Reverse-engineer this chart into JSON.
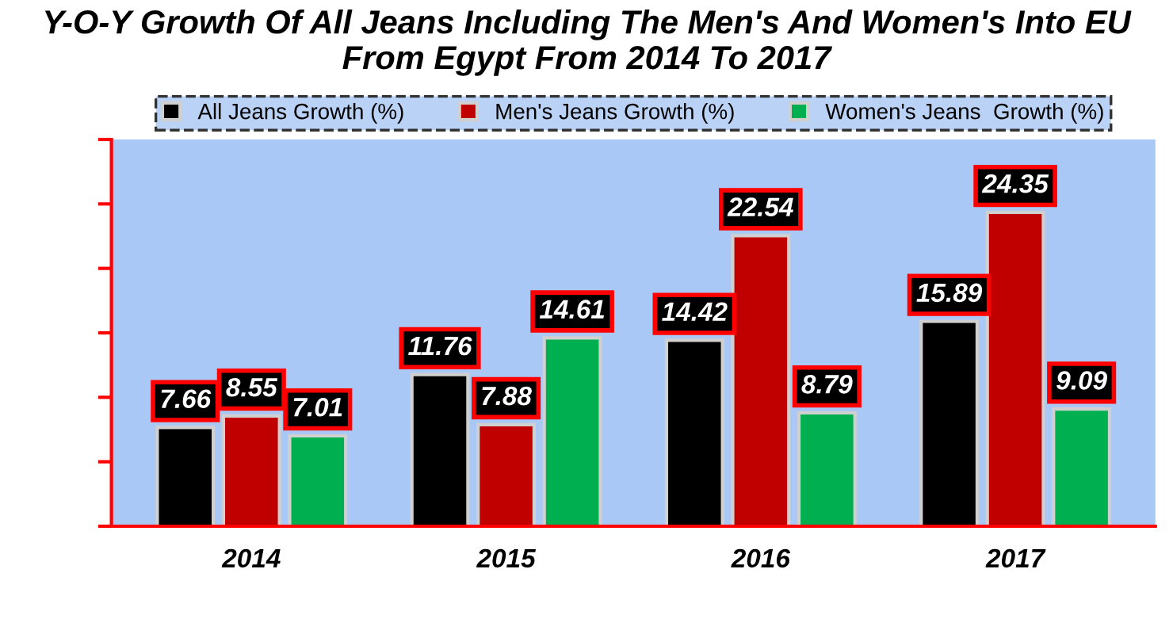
{
  "chart_data": {
    "type": "bar",
    "title": "Y-O-Y Growth Of All Jeans Including The Men's And Women's Into EU From Egypt From 2014 To 2017",
    "categories": [
      "2014",
      "2015",
      "2016",
      "2017"
    ],
    "series": [
      {
        "name": "All Jeans Growth (%)",
        "color": "#000000",
        "values": [
          7.66,
          11.76,
          14.42,
          15.89
        ]
      },
      {
        "name": "Men's Jeans Growth (%)",
        "color": "#c00000",
        "values": [
          8.55,
          7.88,
          22.54,
          24.35
        ]
      },
      {
        "name": "Women's Jeans  Growth (%)",
        "color": "#00b050",
        "values": [
          7.01,
          14.61,
          8.79,
          9.09
        ]
      }
    ],
    "ylim": [
      0,
      30
    ],
    "yticks": [
      {
        "value": 0,
        "label": null
      },
      {
        "value": 5,
        "label": null
      },
      {
        "value": 10,
        "label": null
      },
      {
        "value": 15,
        "label": null
      },
      {
        "value": 20,
        "label": null
      },
      {
        "value": 25,
        "label": null
      },
      {
        "value": 30,
        "label": null
      }
    ],
    "tick_labels": "x",
    "data_labels": true,
    "legend": "top",
    "grid": false
  }
}
